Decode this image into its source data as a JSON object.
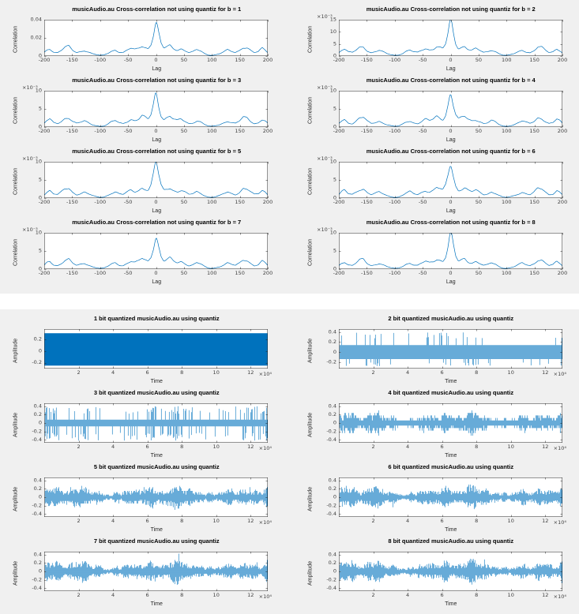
{
  "window": {
    "background": "#ffffff",
    "panel_background": "#f0f0f0"
  },
  "colors": {
    "line": "#0072BD",
    "axis": "#262626",
    "tick_text": "#404040",
    "plot_background": "#ffffff",
    "title_text": "#000000"
  },
  "chart_data": {
    "xcorr_profile": [
      [
        0,
        1.0
      ],
      [
        2,
        0.88
      ],
      [
        5,
        0.62
      ],
      [
        9,
        0.35
      ],
      [
        14,
        0.22
      ],
      [
        19,
        0.26
      ],
      [
        25,
        0.3
      ],
      [
        31,
        0.22
      ],
      [
        38,
        0.18
      ],
      [
        45,
        0.22
      ],
      [
        52,
        0.16
      ],
      [
        59,
        0.1
      ],
      [
        66,
        0.12
      ],
      [
        73,
        0.18
      ],
      [
        80,
        0.14
      ],
      [
        86,
        0.08
      ],
      [
        93,
        0.03
      ],
      [
        100,
        0.02
      ],
      [
        107,
        0.04
      ],
      [
        114,
        0.07
      ],
      [
        121,
        0.12
      ],
      [
        128,
        0.17
      ],
      [
        135,
        0.13
      ],
      [
        142,
        0.1
      ],
      [
        149,
        0.16
      ],
      [
        156,
        0.27
      ],
      [
        163,
        0.25
      ],
      [
        170,
        0.16
      ],
      [
        176,
        0.1
      ],
      [
        183,
        0.12
      ],
      [
        190,
        0.22
      ],
      [
        195,
        0.18
      ],
      [
        200,
        0.1
      ]
    ],
    "figures": [
      {
        "name": "cross-correlation",
        "layout": "4x2",
        "type": "line",
        "subplots": [
          {
            "title": "musicAudio.au Cross-correlation not using quantiz for b = 1",
            "xlabel": "Lag",
            "ylabel": "Correlation",
            "kind": "xcorr",
            "xlim": [
              -200,
              200
            ],
            "xticks": [
              -200,
              -150,
              -100,
              -50,
              0,
              50,
              100,
              150,
              200
            ],
            "xtick_labels": [
              "-200",
              "-150",
              "-100",
              "-50",
              "0",
              "50",
              "100",
              "150",
              "200"
            ],
            "ylim": [
              0,
              0.04
            ],
            "yticks": [
              0,
              0.02,
              0.04
            ],
            "ytick_labels": [
              "0",
              "0.02",
              "0.04"
            ],
            "y_exp": "",
            "x_exp": "",
            "peak": 0.038
          },
          {
            "title": "musicAudio.au Cross-correlation not using quantiz for b = 2",
            "xlabel": "Lag",
            "ylabel": "Correlation",
            "kind": "xcorr",
            "xlim": [
              -200,
              200
            ],
            "xticks": [
              -200,
              -150,
              -100,
              -50,
              0,
              50,
              100,
              150,
              200
            ],
            "xtick_labels": [
              "-200",
              "-150",
              "-100",
              "-50",
              "0",
              "50",
              "100",
              "150",
              "200"
            ],
            "ylim": [
              0,
              15
            ],
            "yticks": [
              0,
              5,
              10,
              15
            ],
            "ytick_labels": [
              "0",
              "5",
              "10",
              "15"
            ],
            "y_exp": "×10⁻³",
            "x_exp": "",
            "peak": 14
          },
          {
            "title": "musicAudio.au Cross-correlation not using quantiz for b = 3",
            "xlabel": "Lag",
            "ylabel": "Correlation",
            "kind": "xcorr",
            "xlim": [
              -200,
              200
            ],
            "xticks": [
              -200,
              -150,
              -100,
              -50,
              0,
              50,
              100,
              150,
              200
            ],
            "xtick_labels": [
              "-200",
              "-150",
              "-100",
              "-50",
              "0",
              "50",
              "100",
              "150",
              "200"
            ],
            "ylim": [
              0,
              10
            ],
            "yticks": [
              0,
              5,
              10
            ],
            "ytick_labels": [
              "0",
              "5",
              "10"
            ],
            "y_exp": "×10⁻³",
            "x_exp": "",
            "peak": 9.8
          },
          {
            "title": "musicAudio.au Cross-correlation not using quantiz for b = 4",
            "xlabel": "Lag",
            "ylabel": "Correlation",
            "kind": "xcorr",
            "xlim": [
              -200,
              200
            ],
            "xticks": [
              -200,
              -150,
              -100,
              -50,
              0,
              50,
              100,
              150,
              200
            ],
            "xtick_labels": [
              "-200",
              "-150",
              "-100",
              "-50",
              "0",
              "50",
              "100",
              "150",
              "200"
            ],
            "ylim": [
              0,
              10
            ],
            "yticks": [
              0,
              5,
              10
            ],
            "ytick_labels": [
              "0",
              "5",
              "10"
            ],
            "y_exp": "×10⁻³",
            "x_exp": "",
            "peak": 9.7
          },
          {
            "title": "musicAudio.au Cross-correlation not using quantiz for b = 5",
            "xlabel": "Lag",
            "ylabel": "Correlation",
            "kind": "xcorr",
            "xlim": [
              -200,
              200
            ],
            "xticks": [
              -200,
              -150,
              -100,
              -50,
              0,
              50,
              100,
              150,
              200
            ],
            "xtick_labels": [
              "-200",
              "-150",
              "-100",
              "-50",
              "0",
              "50",
              "100",
              "150",
              "200"
            ],
            "ylim": [
              0,
              10
            ],
            "yticks": [
              0,
              5,
              10
            ],
            "ytick_labels": [
              "0",
              "5",
              "10"
            ],
            "y_exp": "×10⁻³",
            "x_exp": "",
            "peak": 9.8
          },
          {
            "title": "musicAudio.au Cross-correlation not using quantiz for b = 6",
            "xlabel": "Lag",
            "ylabel": "Correlation",
            "kind": "xcorr",
            "xlim": [
              -200,
              200
            ],
            "xticks": [
              -200,
              -150,
              -100,
              -50,
              0,
              50,
              100,
              150,
              200
            ],
            "xtick_labels": [
              "-200",
              "-150",
              "-100",
              "-50",
              "0",
              "50",
              "100",
              "150",
              "200"
            ],
            "ylim": [
              0,
              10
            ],
            "yticks": [
              0,
              5,
              10
            ],
            "ytick_labels": [
              "0",
              "5",
              "10"
            ],
            "y_exp": "×10⁻³",
            "x_exp": "",
            "peak": 9.7
          },
          {
            "title": "musicAudio.au Cross-correlation not using quantiz for b = 7",
            "xlabel": "Lag",
            "ylabel": "Correlation",
            "kind": "xcorr",
            "xlim": [
              -200,
              200
            ],
            "xticks": [
              -200,
              -150,
              -100,
              -50,
              0,
              50,
              100,
              150,
              200
            ],
            "xtick_labels": [
              "-200",
              "-150",
              "-100",
              "-50",
              "0",
              "50",
              "100",
              "150",
              "200"
            ],
            "ylim": [
              0,
              10
            ],
            "yticks": [
              0,
              5,
              10
            ],
            "ytick_labels": [
              "0",
              "5",
              "10"
            ],
            "y_exp": "×10⁻³",
            "x_exp": "",
            "peak": 9.8
          },
          {
            "title": "musicAudio.au Cross-correlation not using quantiz for b = 8",
            "xlabel": "Lag",
            "ylabel": "Correlation",
            "kind": "xcorr",
            "xlim": [
              -200,
              200
            ],
            "xticks": [
              -200,
              -150,
              -100,
              -50,
              0,
              50,
              100,
              150,
              200
            ],
            "xtick_labels": [
              "-200",
              "-150",
              "-100",
              "-50",
              "0",
              "50",
              "100",
              "150",
              "200"
            ],
            "ylim": [
              0,
              10
            ],
            "yticks": [
              0,
              5,
              10
            ],
            "ytick_labels": [
              "0",
              "5",
              "10"
            ],
            "y_exp": "×10⁻³",
            "x_exp": "",
            "peak": 9.7
          }
        ]
      },
      {
        "name": "quantized-waveforms",
        "layout": "4x2",
        "type": "line",
        "subplots": [
          {
            "title": "1 bit quantized musicAudio.au using quantiz",
            "xlabel": "Time",
            "ylabel": "Amplitude",
            "kind": "block",
            "bits": 1,
            "block": [
              -0.25,
              0.3
            ],
            "xlim": [
              0,
              13
            ],
            "xticks": [
              2,
              4,
              6,
              8,
              10,
              12
            ],
            "xtick_labels": [
              "2",
              "4",
              "6",
              "8",
              "10",
              "12"
            ],
            "ylim": [
              -0.3,
              0.37
            ],
            "yticks": [
              -0.2,
              0,
              0.2
            ],
            "ytick_labels": [
              "-0.2",
              "0",
              "0.2"
            ],
            "y_exp": "",
            "x_exp": "×10⁴"
          },
          {
            "title": "2 bit quantized musicAudio.au using quantiz",
            "xlabel": "Time",
            "ylabel": "Amplitude",
            "kind": "bandspike",
            "bits": 2,
            "band": [
              -0.14,
              0.14
            ],
            "spike_high": 0.41,
            "spike_low": -0.29,
            "spike_rate": 0.28,
            "xlim": [
              0,
              13
            ],
            "xticks": [
              2,
              4,
              6,
              8,
              10,
              12
            ],
            "xtick_labels": [
              "2",
              "4",
              "6",
              "8",
              "10",
              "12"
            ],
            "ylim": [
              -0.33,
              0.46
            ],
            "yticks": [
              -0.2,
              0,
              0.2,
              0.4
            ],
            "ytick_labels": [
              "-0.2",
              "0",
              "0.2",
              "0.4"
            ],
            "y_exp": "",
            "x_exp": "×10⁴"
          },
          {
            "title": "3 bit quantized musicAudio.au using quantiz",
            "xlabel": "Time",
            "ylabel": "Amplitude",
            "kind": "bandspike",
            "bits": 3,
            "band": [
              -0.08,
              0.08
            ],
            "spike_high": 0.4,
            "spike_low": -0.42,
            "spike_rate": 0.75,
            "xlim": [
              0,
              13
            ],
            "xticks": [
              2,
              4,
              6,
              8,
              10,
              12
            ],
            "xtick_labels": [
              "2",
              "4",
              "6",
              "8",
              "10",
              "12"
            ],
            "ylim": [
              -0.47,
              0.47
            ],
            "yticks": [
              -0.4,
              -0.2,
              0,
              0.2,
              0.4
            ],
            "ytick_labels": [
              "-0.4",
              "-0.2",
              "0",
              "0.2",
              "0.4"
            ],
            "y_exp": "",
            "x_exp": "×10⁴"
          },
          {
            "title": "4 bit quantized musicAudio.au using quantiz",
            "xlabel": "Time",
            "ylabel": "Amplitude",
            "kind": "wave",
            "bits": 4,
            "qstep": 0.06,
            "xlim": [
              0,
              13
            ],
            "xticks": [
              2,
              4,
              6,
              8,
              10,
              12
            ],
            "xtick_labels": [
              "2",
              "4",
              "6",
              "8",
              "10",
              "12"
            ],
            "ylim": [
              -0.47,
              0.47
            ],
            "yticks": [
              -0.4,
              -0.2,
              0,
              0.2,
              0.4
            ],
            "ytick_labels": [
              "-0.4",
              "-0.2",
              "0",
              "0.2",
              "0.4"
            ],
            "y_exp": "",
            "x_exp": "×10⁴"
          },
          {
            "title": "5 bit quantized musicAudio.au using quantiz",
            "xlabel": "Time",
            "ylabel": "Amplitude",
            "kind": "wave",
            "bits": 5,
            "qstep": 0.03,
            "xlim": [
              0,
              13
            ],
            "xticks": [
              2,
              4,
              6,
              8,
              10,
              12
            ],
            "xtick_labels": [
              "2",
              "4",
              "6",
              "8",
              "10",
              "12"
            ],
            "ylim": [
              -0.47,
              0.47
            ],
            "yticks": [
              -0.4,
              -0.2,
              0,
              0.2,
              0.4
            ],
            "ytick_labels": [
              "-0.4",
              "-0.2",
              "0",
              "0.2",
              "0.4"
            ],
            "y_exp": "",
            "x_exp": "×10⁴"
          },
          {
            "title": "6 bit quantized musicAudio.au using quantiz",
            "xlabel": "Time",
            "ylabel": "Amplitude",
            "kind": "wave",
            "bits": 6,
            "qstep": 0.015,
            "xlim": [
              0,
              13
            ],
            "xticks": [
              2,
              4,
              6,
              8,
              10,
              12
            ],
            "xtick_labels": [
              "2",
              "4",
              "6",
              "8",
              "10",
              "12"
            ],
            "ylim": [
              -0.47,
              0.47
            ],
            "yticks": [
              -0.4,
              -0.2,
              0,
              0.2,
              0.4
            ],
            "ytick_labels": [
              "-0.4",
              "-0.2",
              "0",
              "0.2",
              "0.4"
            ],
            "y_exp": "",
            "x_exp": "×10⁴"
          },
          {
            "title": "7 bit quantized musicAudio.au using quantiz",
            "xlabel": "Time",
            "ylabel": "Amplitude",
            "kind": "wave",
            "bits": 7,
            "qstep": 0.008,
            "xlim": [
              0,
              13
            ],
            "xticks": [
              2,
              4,
              6,
              8,
              10,
              12
            ],
            "xtick_labels": [
              "2",
              "4",
              "6",
              "8",
              "10",
              "12"
            ],
            "ylim": [
              -0.47,
              0.47
            ],
            "yticks": [
              -0.4,
              -0.2,
              0,
              0.2,
              0.4
            ],
            "ytick_labels": [
              "-0.4",
              "-0.2",
              "0",
              "0.2",
              "0.4"
            ],
            "y_exp": "",
            "x_exp": "×10⁴"
          },
          {
            "title": "8 bit quantized musicAudio.au using quantiz",
            "xlabel": "Time",
            "ylabel": "Amplitude",
            "kind": "wave",
            "bits": 8,
            "qstep": 0.004,
            "xlim": [
              0,
              13
            ],
            "xticks": [
              2,
              4,
              6,
              8,
              10,
              12
            ],
            "xtick_labels": [
              "2",
              "4",
              "6",
              "8",
              "10",
              "12"
            ],
            "ylim": [
              -0.47,
              0.47
            ],
            "yticks": [
              -0.4,
              -0.2,
              0,
              0.2,
              0.4
            ],
            "ytick_labels": [
              "-0.4",
              "-0.2",
              "0",
              "0.2",
              "0.4"
            ],
            "y_exp": "",
            "x_exp": "×10⁴"
          }
        ]
      }
    ]
  }
}
